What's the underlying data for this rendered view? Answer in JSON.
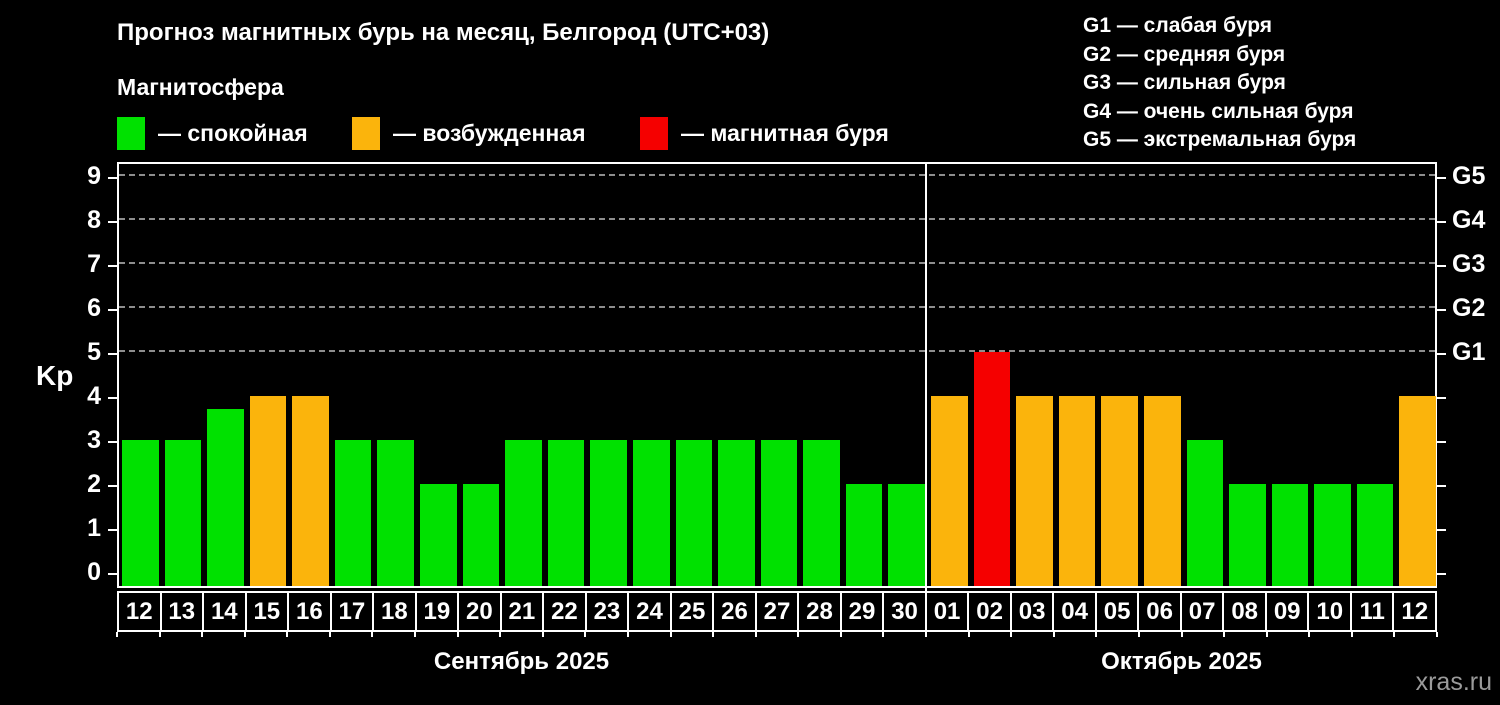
{
  "title": "Прогноз магнитных бурь на месяц, Белгород (UTC+03)",
  "legend_title": "Магнитосфера",
  "legend": {
    "items": [
      {
        "label": "— спокойная",
        "status": "quiet",
        "color": "#00e100"
      },
      {
        "label": "— возбужденная",
        "status": "excited",
        "color": "#fbb40c"
      },
      {
        "label": "— магнитная буря",
        "status": "storm",
        "color": "#f50000"
      }
    ]
  },
  "g_legend": {
    "lines": [
      "G1 — слабая буря",
      "G2 — средняя буря",
      "G3 — сильная буря",
      "G4 — очень сильная буря",
      "G5 — экстремальная буря"
    ]
  },
  "watermark": "xras.ru",
  "chart_data": {
    "type": "bar",
    "title": "Прогноз магнитных бурь на месяц, Белгород (UTC+03)",
    "ylabel": "Kp",
    "ylim": [
      0,
      9
    ],
    "yticks": [
      0,
      1,
      2,
      3,
      4,
      5,
      6,
      7,
      8,
      9
    ],
    "grid_levels": [
      5,
      6,
      7,
      8,
      9
    ],
    "grid": true,
    "right_axis": [
      {
        "level": 5,
        "label": "G1"
      },
      {
        "level": 6,
        "label": "G2"
      },
      {
        "level": 7,
        "label": "G3"
      },
      {
        "level": 8,
        "label": "G4"
      },
      {
        "level": 9,
        "label": "G5"
      }
    ],
    "status_colors": {
      "quiet": "#00e100",
      "excited": "#fbb40c",
      "storm": "#f50000"
    },
    "months": [
      {
        "label": "Сентябрь 2025",
        "days": [
          {
            "day": "12",
            "kp": 3,
            "status": "quiet"
          },
          {
            "day": "13",
            "kp": 3,
            "status": "quiet"
          },
          {
            "day": "14",
            "kp": 3.7,
            "status": "quiet"
          },
          {
            "day": "15",
            "kp": 4,
            "status": "excited"
          },
          {
            "day": "16",
            "kp": 4,
            "status": "excited"
          },
          {
            "day": "17",
            "kp": 3,
            "status": "quiet"
          },
          {
            "day": "18",
            "kp": 3,
            "status": "quiet"
          },
          {
            "day": "19",
            "kp": 2,
            "status": "quiet"
          },
          {
            "day": "20",
            "kp": 2,
            "status": "quiet"
          },
          {
            "day": "21",
            "kp": 3,
            "status": "quiet"
          },
          {
            "day": "22",
            "kp": 3,
            "status": "quiet"
          },
          {
            "day": "23",
            "kp": 3,
            "status": "quiet"
          },
          {
            "day": "24",
            "kp": 3,
            "status": "quiet"
          },
          {
            "day": "25",
            "kp": 3,
            "status": "quiet"
          },
          {
            "day": "26",
            "kp": 3,
            "status": "quiet"
          },
          {
            "day": "27",
            "kp": 3,
            "status": "quiet"
          },
          {
            "day": "28",
            "kp": 3,
            "status": "quiet"
          },
          {
            "day": "29",
            "kp": 2,
            "status": "quiet"
          },
          {
            "day": "30",
            "kp": 2,
            "status": "quiet"
          }
        ]
      },
      {
        "label": "Октябрь 2025",
        "days": [
          {
            "day": "01",
            "kp": 4,
            "status": "excited"
          },
          {
            "day": "02",
            "kp": 5,
            "status": "storm"
          },
          {
            "day": "03",
            "kp": 4,
            "status": "excited"
          },
          {
            "day": "04",
            "kp": 4,
            "status": "excited"
          },
          {
            "day": "05",
            "kp": 4,
            "status": "excited"
          },
          {
            "day": "06",
            "kp": 4,
            "status": "excited"
          },
          {
            "day": "07",
            "kp": 3,
            "status": "quiet"
          },
          {
            "day": "08",
            "kp": 2,
            "status": "quiet"
          },
          {
            "day": "09",
            "kp": 2,
            "status": "quiet"
          },
          {
            "day": "10",
            "kp": 2,
            "status": "quiet"
          },
          {
            "day": "11",
            "kp": 2,
            "status": "quiet"
          },
          {
            "day": "12",
            "kp": 4,
            "status": "excited"
          }
        ]
      }
    ]
  }
}
